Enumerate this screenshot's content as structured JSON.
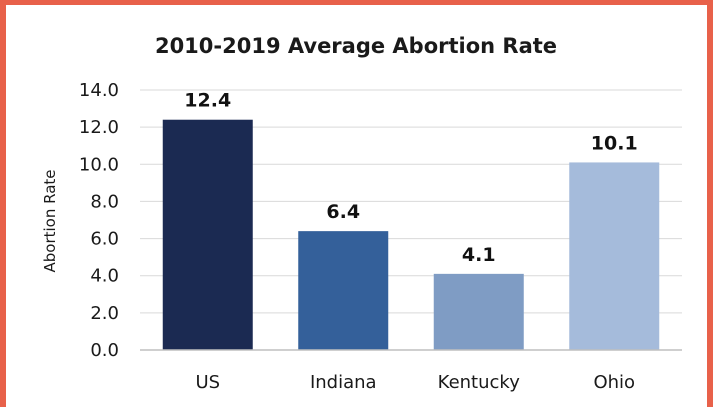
{
  "chart_data": {
    "type": "bar",
    "title": "2010-2019 Average Abortion Rate",
    "xlabel": "",
    "ylabel": "Abortion Rate",
    "categories": [
      "US",
      "Indiana",
      "Kentucky",
      "Ohio"
    ],
    "values": [
      12.4,
      6.4,
      4.1,
      10.1
    ],
    "value_labels": [
      "12.4",
      "6.4",
      "4.1",
      "10.1"
    ],
    "ylim": [
      0,
      14
    ],
    "yticks": [
      0,
      2,
      4,
      6,
      8,
      10,
      12,
      14
    ],
    "ytick_labels": [
      "0.0",
      "2.0",
      "4.0",
      "6.0",
      "8.0",
      "10.0",
      "12.0",
      "14.0"
    ],
    "bar_colors": [
      "#1B2A52",
      "#34609A",
      "#7F9CC4",
      "#A5BBDB"
    ],
    "grid": true,
    "legend": "none"
  },
  "colors": {
    "frame": "#E8614A",
    "gridline": "#D9D9D9",
    "axis": "#BFBFBF"
  }
}
